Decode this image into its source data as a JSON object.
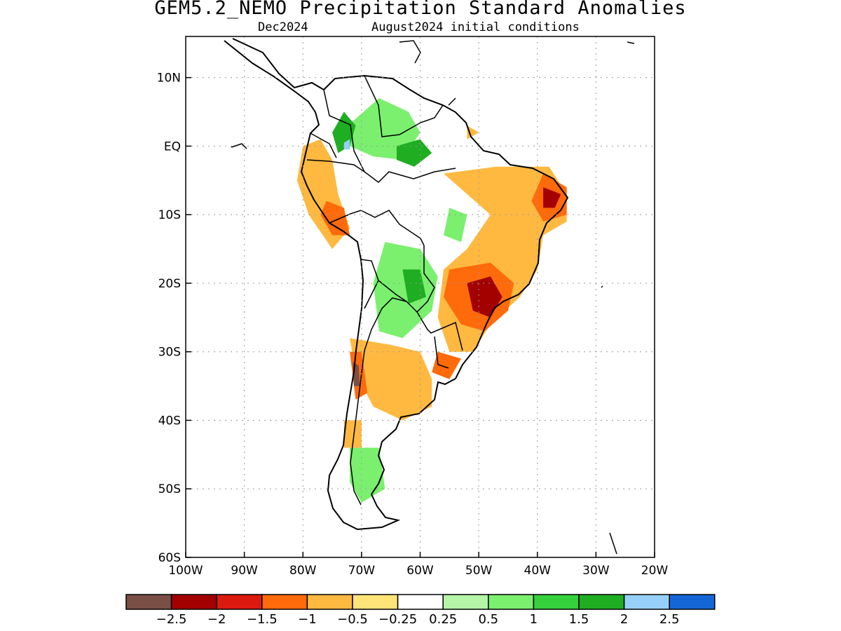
{
  "title": "GEM5.2_NEMO Precipitation Standard Anomalies",
  "subtitle_month": "Dec2024",
  "subtitle_init": "August2024 initial conditions",
  "map": {
    "lon_range": [
      -100,
      -20
    ],
    "lat_range": [
      -60,
      16
    ],
    "gridlines": true,
    "lon_ticks": [
      {
        "value": -100,
        "label": "100W"
      },
      {
        "value": -90,
        "label": "90W"
      },
      {
        "value": -80,
        "label": "80W"
      },
      {
        "value": -70,
        "label": "70W"
      },
      {
        "value": -60,
        "label": "60W"
      },
      {
        "value": -50,
        "label": "50W"
      },
      {
        "value": -40,
        "label": "40W"
      },
      {
        "value": -30,
        "label": "30W"
      },
      {
        "value": -20,
        "label": "20W"
      }
    ],
    "lat_ticks": [
      {
        "value": 10,
        "label": "10N"
      },
      {
        "value": 0,
        "label": "EQ"
      },
      {
        "value": -10,
        "label": "10S"
      },
      {
        "value": -20,
        "label": "20S"
      },
      {
        "value": -30,
        "label": "30S"
      },
      {
        "value": -40,
        "label": "40S"
      },
      {
        "value": -50,
        "label": "50S"
      },
      {
        "value": -60,
        "label": "60S"
      }
    ]
  },
  "colorbar": {
    "colors": [
      "#7a4f45",
      "#a30000",
      "#dd1a0f",
      "#ff6a0a",
      "#ffb940",
      "#ffe47a",
      "#ffffff",
      "#b5f5a8",
      "#7af06e",
      "#37d03d",
      "#1fad22",
      "#96d0fa",
      "#1466d6"
    ],
    "labels": [
      "−2.5",
      "−2",
      "−1.5",
      "−1",
      "−0.5",
      "−0.25",
      "0.25",
      "0.5",
      "1",
      "1.5",
      "2",
      "2.5"
    ]
  },
  "anomaly_regions": [
    {
      "level": 1,
      "points": [
        [
          -73,
          2.5
        ],
        [
          -67,
          7
        ],
        [
          -62,
          5
        ],
        [
          -60,
          2
        ],
        [
          -63,
          -2
        ],
        [
          -68,
          -1.5
        ],
        [
          -72,
          0
        ]
      ]
    },
    {
      "level": 1,
      "points": [
        [
          -66,
          -14
        ],
        [
          -60,
          -15
        ],
        [
          -57,
          -19
        ],
        [
          -58,
          -24
        ],
        [
          -63,
          -28
        ],
        [
          -67,
          -27
        ],
        [
          -68,
          -20
        ]
      ]
    },
    {
      "level": 1,
      "points": [
        [
          -55,
          -9
        ],
        [
          -52,
          -10
        ],
        [
          -53,
          -14
        ],
        [
          -56,
          -13
        ]
      ]
    },
    {
      "level": 1,
      "points": [
        [
          -72,
          -44
        ],
        [
          -67,
          -44
        ],
        [
          -66,
          -50
        ],
        [
          -70,
          -52
        ],
        [
          -72,
          -49
        ]
      ]
    },
    {
      "level": 2,
      "points": [
        [
          -75,
          2
        ],
        [
          -73,
          5
        ],
        [
          -71,
          3
        ],
        [
          -72,
          0
        ],
        [
          -74,
          -1
        ]
      ]
    },
    {
      "level": 2,
      "points": [
        [
          -63,
          -18
        ],
        [
          -60,
          -18
        ],
        [
          -59,
          -22
        ],
        [
          -62,
          -23
        ]
      ]
    },
    {
      "level": 2,
      "points": [
        [
          -64,
          0
        ],
        [
          -60,
          1
        ],
        [
          -58,
          -1
        ],
        [
          -61,
          -3
        ],
        [
          -64,
          -2
        ]
      ]
    },
    {
      "level": -0.5,
      "points": [
        [
          -80,
          0
        ],
        [
          -77,
          1
        ],
        [
          -75,
          -2
        ],
        [
          -74,
          -7
        ],
        [
          -72,
          -12
        ],
        [
          -75,
          -15
        ],
        [
          -79,
          -10
        ],
        [
          -81,
          -5
        ]
      ]
    },
    {
      "level": -0.5,
      "points": [
        [
          -56,
          -4
        ],
        [
          -47,
          -3
        ],
        [
          -38,
          -3
        ],
        [
          -35,
          -7
        ],
        [
          -35,
          -11
        ],
        [
          -39,
          -13
        ],
        [
          -40,
          -18
        ],
        [
          -43,
          -22
        ],
        [
          -48,
          -26
        ],
        [
          -51,
          -30
        ],
        [
          -55,
          -30
        ],
        [
          -57,
          -25
        ],
        [
          -56,
          -18
        ],
        [
          -52,
          -15
        ],
        [
          -48,
          -10
        ],
        [
          -52,
          -7
        ]
      ]
    },
    {
      "level": -0.5,
      "points": [
        [
          -72,
          -28
        ],
        [
          -65,
          -29
        ],
        [
          -60,
          -30
        ],
        [
          -58,
          -34
        ],
        [
          -58,
          -38
        ],
        [
          -63,
          -40
        ],
        [
          -68,
          -38
        ],
        [
          -71,
          -33
        ]
      ]
    },
    {
      "level": -0.5,
      "points": [
        [
          -73,
          -40
        ],
        [
          -70,
          -40
        ],
        [
          -70,
          -44
        ],
        [
          -73,
          -44
        ]
      ]
    },
    {
      "level": -0.5,
      "points": [
        [
          -52,
          3
        ],
        [
          -50,
          2
        ],
        [
          -52,
          1
        ]
      ]
    },
    {
      "level": -1,
      "points": [
        [
          -76,
          -8
        ],
        [
          -73,
          -9
        ],
        [
          -72,
          -13
        ],
        [
          -75,
          -13
        ],
        [
          -77,
          -10
        ]
      ]
    },
    {
      "level": -1,
      "points": [
        [
          -39,
          -4
        ],
        [
          -35,
          -6
        ],
        [
          -35,
          -10
        ],
        [
          -39,
          -11
        ],
        [
          -41,
          -8
        ]
      ]
    },
    {
      "level": -1,
      "points": [
        [
          -55,
          -18
        ],
        [
          -48,
          -17
        ],
        [
          -44,
          -20
        ],
        [
          -45,
          -24
        ],
        [
          -49,
          -27
        ],
        [
          -53,
          -26
        ],
        [
          -56,
          -22
        ]
      ]
    },
    {
      "level": -1,
      "points": [
        [
          -72,
          -30
        ],
        [
          -70,
          -30
        ],
        [
          -69,
          -36
        ],
        [
          -71,
          -37
        ]
      ]
    },
    {
      "level": -1,
      "points": [
        [
          -57,
          -30
        ],
        [
          -53,
          -31
        ],
        [
          -55,
          -34
        ],
        [
          -58,
          -33
        ]
      ]
    },
    {
      "level": -2,
      "points": [
        [
          -52,
          -20
        ],
        [
          -48,
          -19
        ],
        [
          -46,
          -22
        ],
        [
          -48,
          -25
        ],
        [
          -51,
          -24
        ]
      ]
    },
    {
      "level": -2,
      "points": [
        [
          -39,
          -6
        ],
        [
          -36,
          -7
        ],
        [
          -37,
          -9
        ],
        [
          -39,
          -9
        ]
      ]
    },
    {
      "level": -2.5,
      "points": [
        [
          -71.5,
          -31.5
        ],
        [
          -70.5,
          -32
        ],
        [
          -70.3,
          -35
        ],
        [
          -71.3,
          -35
        ]
      ]
    },
    {
      "level": 2.5,
      "points": [
        [
          -73,
          0.5
        ],
        [
          -72,
          1
        ],
        [
          -72,
          -0.5
        ],
        [
          -73,
          -0.5
        ]
      ]
    }
  ]
}
